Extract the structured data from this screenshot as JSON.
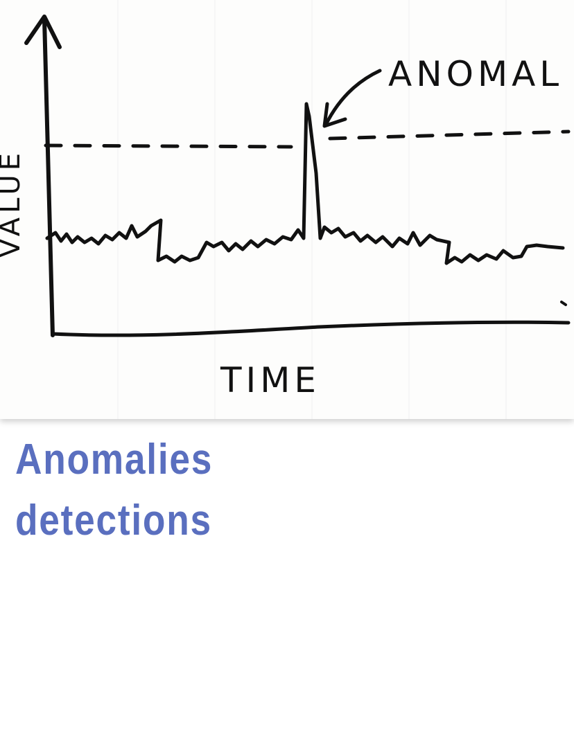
{
  "sketch": {
    "annotation_label": "ANOMAL",
    "x_axis_label": "TIME",
    "y_axis_label": "VALUE"
  },
  "caption": {
    "line1": "Anomalies",
    "line2": "detections",
    "color": "#5a6fbf"
  }
}
